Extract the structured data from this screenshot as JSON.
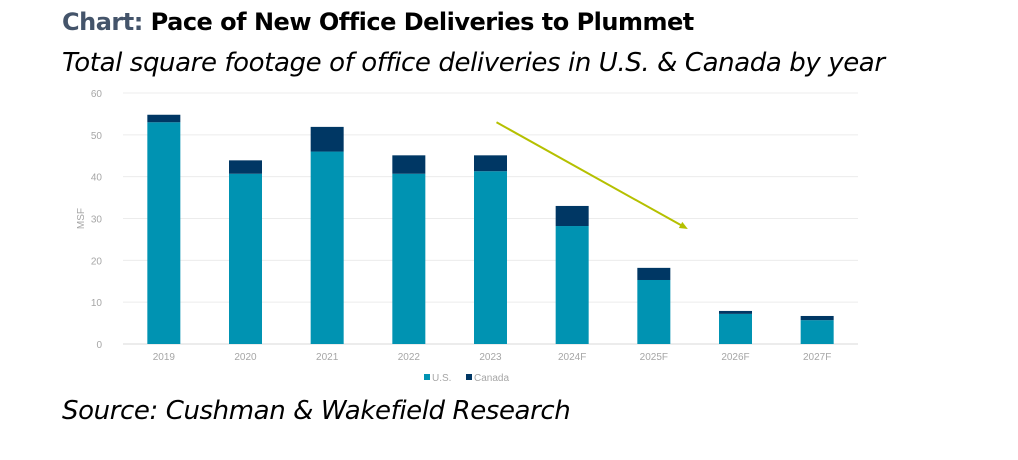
{
  "heading": {
    "lead": "Chart:",
    "title": "Pace of New Office Deliveries to Plummet"
  },
  "subtitle": "Total square footage of office deliveries in U.S. & Canada by year",
  "source": "Source: Cushman & Wakefield Research",
  "chart_data": {
    "type": "bar",
    "stacked": true,
    "categories": [
      "2019",
      "2020",
      "2021",
      "2022",
      "2023",
      "2024F",
      "2025F",
      "2026F",
      "2027F"
    ],
    "series": [
      {
        "name": "U.S.",
        "color": "#0093b2",
        "values": [
          53.0,
          40.7,
          46.0,
          40.7,
          41.3,
          28.2,
          15.3,
          7.2,
          5.7
        ]
      },
      {
        "name": "Canada",
        "color": "#003764",
        "values": [
          1.8,
          3.2,
          5.9,
          4.4,
          3.8,
          4.8,
          2.9,
          0.7,
          1.0
        ]
      }
    ],
    "ylabel": "MSF",
    "ylim": [
      0,
      60
    ],
    "yticks": [
      "0",
      "10",
      "20",
      "30",
      "40",
      "50",
      "60"
    ],
    "grid": true,
    "legend": "bottom",
    "annotation": {
      "type": "arrow",
      "color": "#b5c000",
      "from": {
        "category": "2023",
        "value": 53
      },
      "to": {
        "category": "2025F",
        "value": 27.5
      }
    }
  }
}
